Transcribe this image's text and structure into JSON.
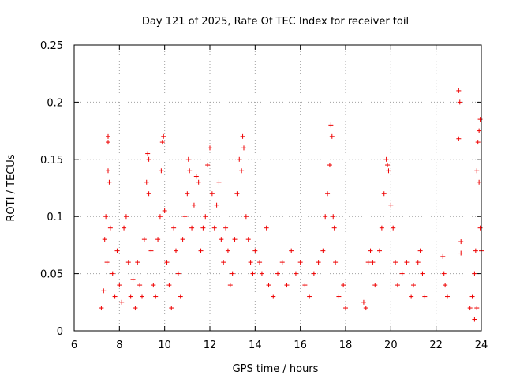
{
  "chart_data": {
    "type": "scatter",
    "title": "Day 121 of 2025, Rate Of TEC Index for receiver toil",
    "xlabel": "GPS time / hours",
    "ylabel": "ROTI / TECUs",
    "xlim": [
      6,
      24
    ],
    "ylim": [
      0,
      0.25
    ],
    "xticks": [
      6,
      8,
      10,
      12,
      14,
      16,
      18,
      20,
      22,
      24
    ],
    "yticks": [
      0,
      0.05,
      0.1,
      0.15,
      0.2,
      0.25
    ],
    "ytick_labels": [
      "0",
      "0.05",
      "0.1",
      "0.15",
      "0.2",
      "0.25"
    ],
    "grid": true,
    "marker": "+",
    "color": "#ee0000",
    "series": [
      {
        "name": "ROTI",
        "points": [
          [
            7.2,
            0.02
          ],
          [
            7.3,
            0.035
          ],
          [
            7.35,
            0.08
          ],
          [
            7.4,
            0.1
          ],
          [
            7.45,
            0.06
          ],
          [
            7.5,
            0.17
          ],
          [
            7.5,
            0.165
          ],
          [
            7.5,
            0.14
          ],
          [
            7.55,
            0.13
          ],
          [
            7.6,
            0.09
          ],
          [
            7.7,
            0.05
          ],
          [
            7.8,
            0.03
          ],
          [
            7.9,
            0.07
          ],
          [
            8.0,
            0.04
          ],
          [
            8.1,
            0.025
          ],
          [
            8.2,
            0.09
          ],
          [
            8.3,
            0.1
          ],
          [
            8.4,
            0.06
          ],
          [
            8.5,
            0.03
          ],
          [
            8.6,
            0.045
          ],
          [
            8.7,
            0.02
          ],
          [
            8.8,
            0.06
          ],
          [
            8.9,
            0.04
          ],
          [
            9.0,
            0.03
          ],
          [
            9.1,
            0.08
          ],
          [
            9.2,
            0.13
          ],
          [
            9.25,
            0.155
          ],
          [
            9.3,
            0.15
          ],
          [
            9.3,
            0.12
          ],
          [
            9.4,
            0.07
          ],
          [
            9.5,
            0.04
          ],
          [
            9.6,
            0.03
          ],
          [
            9.7,
            0.08
          ],
          [
            9.8,
            0.1
          ],
          [
            9.85,
            0.14
          ],
          [
            9.9,
            0.165
          ],
          [
            9.95,
            0.17
          ],
          [
            10.0,
            0.105
          ],
          [
            10.1,
            0.06
          ],
          [
            10.2,
            0.04
          ],
          [
            10.3,
            0.02
          ],
          [
            10.4,
            0.09
          ],
          [
            10.5,
            0.07
          ],
          [
            10.6,
            0.05
          ],
          [
            10.7,
            0.03
          ],
          [
            10.8,
            0.08
          ],
          [
            10.9,
            0.1
          ],
          [
            11.0,
            0.12
          ],
          [
            11.05,
            0.15
          ],
          [
            11.1,
            0.14
          ],
          [
            11.2,
            0.09
          ],
          [
            11.3,
            0.11
          ],
          [
            11.4,
            0.135
          ],
          [
            11.5,
            0.13
          ],
          [
            11.6,
            0.07
          ],
          [
            11.7,
            0.09
          ],
          [
            11.8,
            0.1
          ],
          [
            11.9,
            0.145
          ],
          [
            12.0,
            0.16
          ],
          [
            12.1,
            0.12
          ],
          [
            12.2,
            0.09
          ],
          [
            12.3,
            0.11
          ],
          [
            12.4,
            0.13
          ],
          [
            12.5,
            0.08
          ],
          [
            12.6,
            0.06
          ],
          [
            12.7,
            0.09
          ],
          [
            12.8,
            0.07
          ],
          [
            12.9,
            0.04
          ],
          [
            13.0,
            0.05
          ],
          [
            13.1,
            0.08
          ],
          [
            13.2,
            0.12
          ],
          [
            13.3,
            0.15
          ],
          [
            13.4,
            0.14
          ],
          [
            13.45,
            0.17
          ],
          [
            13.5,
            0.16
          ],
          [
            13.6,
            0.1
          ],
          [
            13.7,
            0.08
          ],
          [
            13.8,
            0.06
          ],
          [
            13.9,
            0.05
          ],
          [
            14.0,
            0.07
          ],
          [
            14.2,
            0.06
          ],
          [
            14.3,
            0.05
          ],
          [
            14.5,
            0.09
          ],
          [
            14.6,
            0.04
          ],
          [
            14.8,
            0.03
          ],
          [
            15.0,
            0.05
          ],
          [
            15.2,
            0.06
          ],
          [
            15.4,
            0.04
          ],
          [
            15.6,
            0.07
          ],
          [
            15.8,
            0.05
          ],
          [
            16.0,
            0.06
          ],
          [
            16.2,
            0.04
          ],
          [
            16.4,
            0.03
          ],
          [
            16.6,
            0.05
          ],
          [
            16.8,
            0.06
          ],
          [
            17.0,
            0.07
          ],
          [
            17.1,
            0.1
          ],
          [
            17.2,
            0.12
          ],
          [
            17.3,
            0.145
          ],
          [
            17.35,
            0.18
          ],
          [
            17.4,
            0.17
          ],
          [
            17.45,
            0.1
          ],
          [
            17.5,
            0.09
          ],
          [
            17.55,
            0.06
          ],
          [
            17.7,
            0.03
          ],
          [
            17.9,
            0.04
          ],
          [
            18.0,
            0.02
          ],
          [
            18.8,
            0.025
          ],
          [
            18.9,
            0.02
          ],
          [
            19.0,
            0.06
          ],
          [
            19.1,
            0.07
          ],
          [
            19.2,
            0.06
          ],
          [
            19.3,
            0.04
          ],
          [
            19.5,
            0.07
          ],
          [
            19.6,
            0.09
          ],
          [
            19.7,
            0.12
          ],
          [
            19.8,
            0.15
          ],
          [
            19.85,
            0.145
          ],
          [
            19.9,
            0.14
          ],
          [
            20.0,
            0.11
          ],
          [
            20.1,
            0.09
          ],
          [
            20.2,
            0.06
          ],
          [
            20.3,
            0.04
          ],
          [
            20.5,
            0.05
          ],
          [
            20.7,
            0.06
          ],
          [
            20.9,
            0.03
          ],
          [
            21.0,
            0.04
          ],
          [
            21.2,
            0.06
          ],
          [
            21.3,
            0.07
          ],
          [
            21.4,
            0.05
          ],
          [
            21.5,
            0.03
          ],
          [
            22.3,
            0.065
          ],
          [
            22.35,
            0.05
          ],
          [
            22.4,
            0.04
          ],
          [
            22.5,
            0.03
          ],
          [
            23.0,
            0.21
          ],
          [
            23.05,
            0.2
          ],
          [
            23.0,
            0.168
          ],
          [
            23.1,
            0.078
          ],
          [
            23.1,
            0.068
          ],
          [
            23.5,
            0.02
          ],
          [
            23.6,
            0.03
          ],
          [
            23.7,
            0.05
          ],
          [
            23.75,
            0.07
          ],
          [
            23.8,
            0.14
          ],
          [
            23.85,
            0.165
          ],
          [
            23.9,
            0.175
          ],
          [
            23.95,
            0.185
          ],
          [
            23.9,
            0.13
          ],
          [
            23.95,
            0.09
          ],
          [
            24.0,
            0.07
          ],
          [
            23.7,
            0.01
          ],
          [
            23.8,
            0.02
          ]
        ]
      }
    ]
  }
}
